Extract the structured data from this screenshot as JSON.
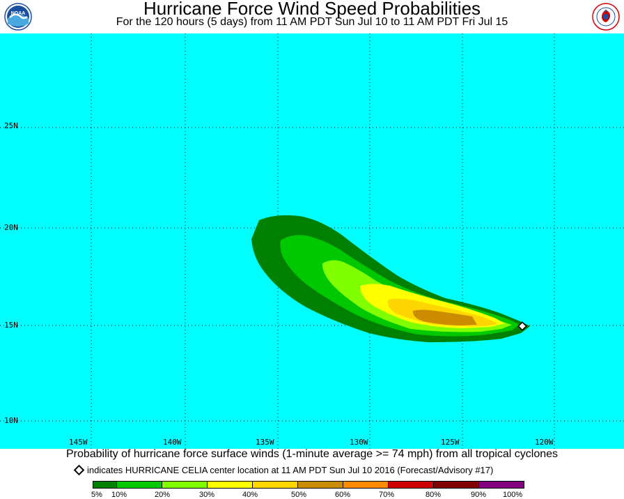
{
  "header": {
    "title": "Hurricane Force Wind Speed Probabilities",
    "subtitle": "For the 120 hours (5 days) from 11 AM PDT Sun Jul 10 to 11 AM PDT Fri Jul 15"
  },
  "logos": {
    "left": {
      "icon": "noaa-logo",
      "text": "NOAA"
    },
    "right": {
      "icon": "nws-logo",
      "text": "NATIONAL WEATHER SERVICE"
    }
  },
  "map": {
    "background_color": "#00ffff",
    "lat_labels": [
      "25N",
      "20N",
      "15N",
      "10N"
    ],
    "lon_labels": [
      "145W",
      "140W",
      "135W",
      "130W",
      "125W",
      "120W"
    ],
    "storm_center": {
      "name": "HURRICANE CELIA",
      "lat": 14.9,
      "lon": -122.1
    }
  },
  "footer": {
    "line1": "Probability of hurricane force surface winds (1-minute average >= 74 mph) from all tropical cyclones",
    "line2": "indicates HURRICANE CELIA center location at 11 AM PDT Sun Jul 10 2016 (Forecast/Advisory #17)"
  },
  "legend": {
    "bins": [
      {
        "color": "#008000"
      },
      {
        "color": "#00c800"
      },
      {
        "color": "#80ff00"
      },
      {
        "color": "#ffff00"
      },
      {
        "color": "#ffd700"
      },
      {
        "color": "#cc8c00"
      },
      {
        "color": "#ff8c00"
      },
      {
        "color": "#cc0000"
      },
      {
        "color": "#800000"
      },
      {
        "color": "#800080"
      }
    ],
    "labels": [
      "5%",
      "10%",
      "20%",
      "30%",
      "40%",
      "50%",
      "60%",
      "70%",
      "80%",
      "90%",
      "100%"
    ]
  },
  "chart_data": {
    "type": "map",
    "title": "Hurricane Force Wind Speed Probabilities",
    "contour_levels_percent": [
      5,
      10,
      20,
      30,
      40,
      50
    ],
    "colors": {
      "5": "#008000",
      "10": "#00c800",
      "20": "#80ff00",
      "30": "#ffff00",
      "40": "#ffd700",
      "50": "#cc8c00"
    }
  }
}
